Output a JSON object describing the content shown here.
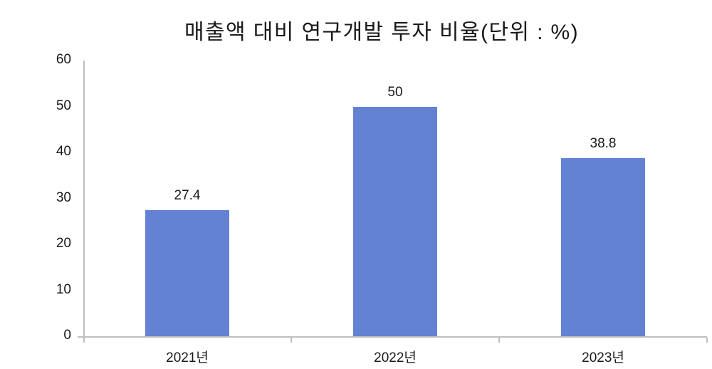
{
  "chart_data": {
    "type": "bar",
    "title": "매출액 대비 연구개발 투자 비율(단위 : %)",
    "categories": [
      "2021년",
      "2022년",
      "2023년"
    ],
    "values": [
      27.4,
      50,
      38.8
    ],
    "data_labels": [
      "27.4",
      "50",
      "38.8"
    ],
    "ylim": [
      0,
      60
    ],
    "ytick_step": 10,
    "ytick_labels": [
      "0",
      "10",
      "20",
      "30",
      "40",
      "50",
      "60"
    ],
    "grid": false,
    "legend": false,
    "bar_color": "#6382d3",
    "axis_color": "#bfbfbf",
    "text_color": "#1a1a1a"
  }
}
